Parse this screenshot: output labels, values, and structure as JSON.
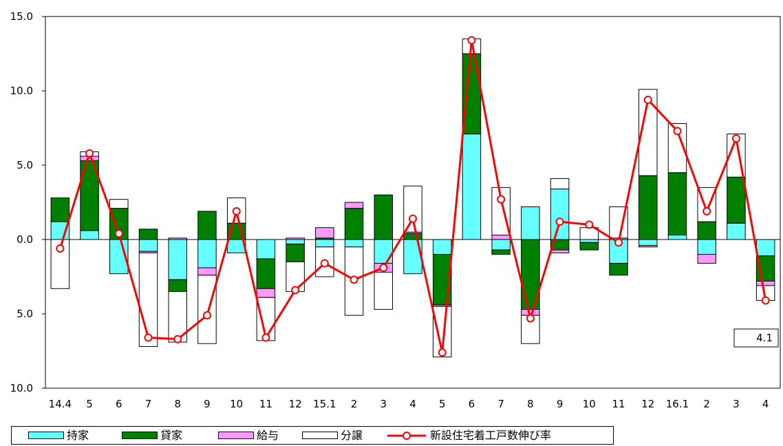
{
  "chart_data": {
    "type": "bar",
    "stacked": true,
    "categories": [
      "14.4",
      "5",
      "6",
      "7",
      "8",
      "9",
      "10",
      "11",
      "12",
      "15.1",
      "2",
      "3",
      "4",
      "5",
      "6",
      "7",
      "8",
      "9",
      "10",
      "11",
      "12",
      "16.1",
      "2",
      "3",
      "4"
    ],
    "y_tick_labels": [
      "15.0",
      "10.0",
      "5.0",
      "0.0",
      "5.0",
      "10.0"
    ],
    "ylim": [
      -10,
      15
    ],
    "yticks": [
      15,
      10,
      5,
      0,
      -5,
      -10
    ],
    "grid": false,
    "legend_position": "bottom",
    "series": [
      {
        "name": "持家",
        "color": "#66ffff",
        "values": [
          1.2,
          0.6,
          -2.3,
          -0.8,
          -2.7,
          -1.9,
          -0.9,
          -1.3,
          -0.3,
          -0.5,
          -0.5,
          -1.6,
          -2.3,
          -1.0,
          7.1,
          -0.7,
          2.2,
          3.4,
          -0.2,
          -1.6,
          -0.4,
          0.3,
          -1.0,
          1.1,
          -1.1
        ]
      },
      {
        "name": "貸家",
        "color": "#008000",
        "values": [
          1.6,
          4.7,
          2.1,
          0.7,
          -0.8,
          1.9,
          1.1,
          -2.0,
          -1.2,
          0.1,
          2.1,
          3.0,
          0.4,
          -3.4,
          5.4,
          -0.3,
          -4.7,
          -0.7,
          -0.5,
          -0.8,
          4.3,
          4.2,
          1.2,
          3.1,
          -1.7
        ]
      },
      {
        "name": "給与",
        "color": "#ff99ff",
        "values": [
          0.0,
          0.3,
          0.0,
          -0.1,
          0.1,
          -0.5,
          0.0,
          -0.6,
          0.1,
          0.7,
          0.4,
          -0.6,
          0.1,
          -0.1,
          0.0,
          0.3,
          -0.4,
          -0.2,
          0.0,
          0.1,
          -0.1,
          0.0,
          -0.6,
          0.0,
          -0.3
        ]
      },
      {
        "name": "分譲",
        "color": "#ffffff",
        "values": [
          -3.3,
          0.3,
          0.6,
          -6.3,
          -3.4,
          -4.6,
          1.7,
          -2.9,
          -2.0,
          -2.0,
          -4.6,
          -2.5,
          3.1,
          -3.4,
          1.0,
          3.2,
          -1.9,
          0.7,
          0.8,
          2.1,
          5.8,
          3.3,
          2.3,
          2.9,
          -1.0
        ]
      },
      {
        "name": "新設住宅着工戸数伸び率",
        "type": "line",
        "color": "#ff0000",
        "values": [
          -0.6,
          5.8,
          0.4,
          -6.6,
          -6.7,
          -5.1,
          1.9,
          -6.6,
          -3.4,
          -1.6,
          -2.7,
          -1.9,
          1.4,
          -7.6,
          13.4,
          2.7,
          -5.3,
          1.2,
          1.0,
          -0.2,
          9.4,
          7.3,
          1.9,
          6.8,
          -4.1
        ]
      }
    ],
    "annotations": [
      {
        "text": "4.1"
      }
    ]
  }
}
